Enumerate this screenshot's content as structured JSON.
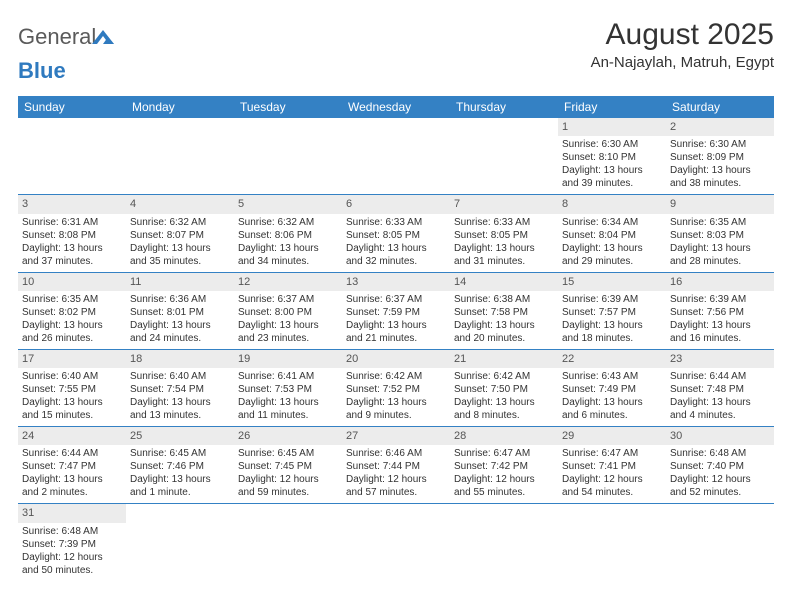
{
  "logo": {
    "text_general": "General",
    "text_blue": "Blue",
    "mark_color": "#2f7abf"
  },
  "header": {
    "month_title": "August 2025",
    "location": "An-Najaylah, Matruh, Egypt"
  },
  "colors": {
    "header_bg": "#3481c4",
    "header_text": "#ffffff",
    "daynum_bg": "#ececec",
    "border": "#3481c4",
    "body_text": "#333333"
  },
  "calendar": {
    "weekdays": [
      "Sunday",
      "Monday",
      "Tuesday",
      "Wednesday",
      "Thursday",
      "Friday",
      "Saturday"
    ],
    "first_weekday_index": 5,
    "days": [
      {
        "n": 1,
        "sunrise": "6:30 AM",
        "sunset": "8:10 PM",
        "daylight": "13 hours and 39 minutes."
      },
      {
        "n": 2,
        "sunrise": "6:30 AM",
        "sunset": "8:09 PM",
        "daylight": "13 hours and 38 minutes."
      },
      {
        "n": 3,
        "sunrise": "6:31 AM",
        "sunset": "8:08 PM",
        "daylight": "13 hours and 37 minutes."
      },
      {
        "n": 4,
        "sunrise": "6:32 AM",
        "sunset": "8:07 PM",
        "daylight": "13 hours and 35 minutes."
      },
      {
        "n": 5,
        "sunrise": "6:32 AM",
        "sunset": "8:06 PM",
        "daylight": "13 hours and 34 minutes."
      },
      {
        "n": 6,
        "sunrise": "6:33 AM",
        "sunset": "8:05 PM",
        "daylight": "13 hours and 32 minutes."
      },
      {
        "n": 7,
        "sunrise": "6:33 AM",
        "sunset": "8:05 PM",
        "daylight": "13 hours and 31 minutes."
      },
      {
        "n": 8,
        "sunrise": "6:34 AM",
        "sunset": "8:04 PM",
        "daylight": "13 hours and 29 minutes."
      },
      {
        "n": 9,
        "sunrise": "6:35 AM",
        "sunset": "8:03 PM",
        "daylight": "13 hours and 28 minutes."
      },
      {
        "n": 10,
        "sunrise": "6:35 AM",
        "sunset": "8:02 PM",
        "daylight": "13 hours and 26 minutes."
      },
      {
        "n": 11,
        "sunrise": "6:36 AM",
        "sunset": "8:01 PM",
        "daylight": "13 hours and 24 minutes."
      },
      {
        "n": 12,
        "sunrise": "6:37 AM",
        "sunset": "8:00 PM",
        "daylight": "13 hours and 23 minutes."
      },
      {
        "n": 13,
        "sunrise": "6:37 AM",
        "sunset": "7:59 PM",
        "daylight": "13 hours and 21 minutes."
      },
      {
        "n": 14,
        "sunrise": "6:38 AM",
        "sunset": "7:58 PM",
        "daylight": "13 hours and 20 minutes."
      },
      {
        "n": 15,
        "sunrise": "6:39 AM",
        "sunset": "7:57 PM",
        "daylight": "13 hours and 18 minutes."
      },
      {
        "n": 16,
        "sunrise": "6:39 AM",
        "sunset": "7:56 PM",
        "daylight": "13 hours and 16 minutes."
      },
      {
        "n": 17,
        "sunrise": "6:40 AM",
        "sunset": "7:55 PM",
        "daylight": "13 hours and 15 minutes."
      },
      {
        "n": 18,
        "sunrise": "6:40 AM",
        "sunset": "7:54 PM",
        "daylight": "13 hours and 13 minutes."
      },
      {
        "n": 19,
        "sunrise": "6:41 AM",
        "sunset": "7:53 PM",
        "daylight": "13 hours and 11 minutes."
      },
      {
        "n": 20,
        "sunrise": "6:42 AM",
        "sunset": "7:52 PM",
        "daylight": "13 hours and 9 minutes."
      },
      {
        "n": 21,
        "sunrise": "6:42 AM",
        "sunset": "7:50 PM",
        "daylight": "13 hours and 8 minutes."
      },
      {
        "n": 22,
        "sunrise": "6:43 AM",
        "sunset": "7:49 PM",
        "daylight": "13 hours and 6 minutes."
      },
      {
        "n": 23,
        "sunrise": "6:44 AM",
        "sunset": "7:48 PM",
        "daylight": "13 hours and 4 minutes."
      },
      {
        "n": 24,
        "sunrise": "6:44 AM",
        "sunset": "7:47 PM",
        "daylight": "13 hours and 2 minutes."
      },
      {
        "n": 25,
        "sunrise": "6:45 AM",
        "sunset": "7:46 PM",
        "daylight": "13 hours and 1 minute."
      },
      {
        "n": 26,
        "sunrise": "6:45 AM",
        "sunset": "7:45 PM",
        "daylight": "12 hours and 59 minutes."
      },
      {
        "n": 27,
        "sunrise": "6:46 AM",
        "sunset": "7:44 PM",
        "daylight": "12 hours and 57 minutes."
      },
      {
        "n": 28,
        "sunrise": "6:47 AM",
        "sunset": "7:42 PM",
        "daylight": "12 hours and 55 minutes."
      },
      {
        "n": 29,
        "sunrise": "6:47 AM",
        "sunset": "7:41 PM",
        "daylight": "12 hours and 54 minutes."
      },
      {
        "n": 30,
        "sunrise": "6:48 AM",
        "sunset": "7:40 PM",
        "daylight": "12 hours and 52 minutes."
      },
      {
        "n": 31,
        "sunrise": "6:48 AM",
        "sunset": "7:39 PM",
        "daylight": "12 hours and 50 minutes."
      }
    ],
    "labels": {
      "sunrise": "Sunrise:",
      "sunset": "Sunset:",
      "daylight": "Daylight:"
    }
  }
}
